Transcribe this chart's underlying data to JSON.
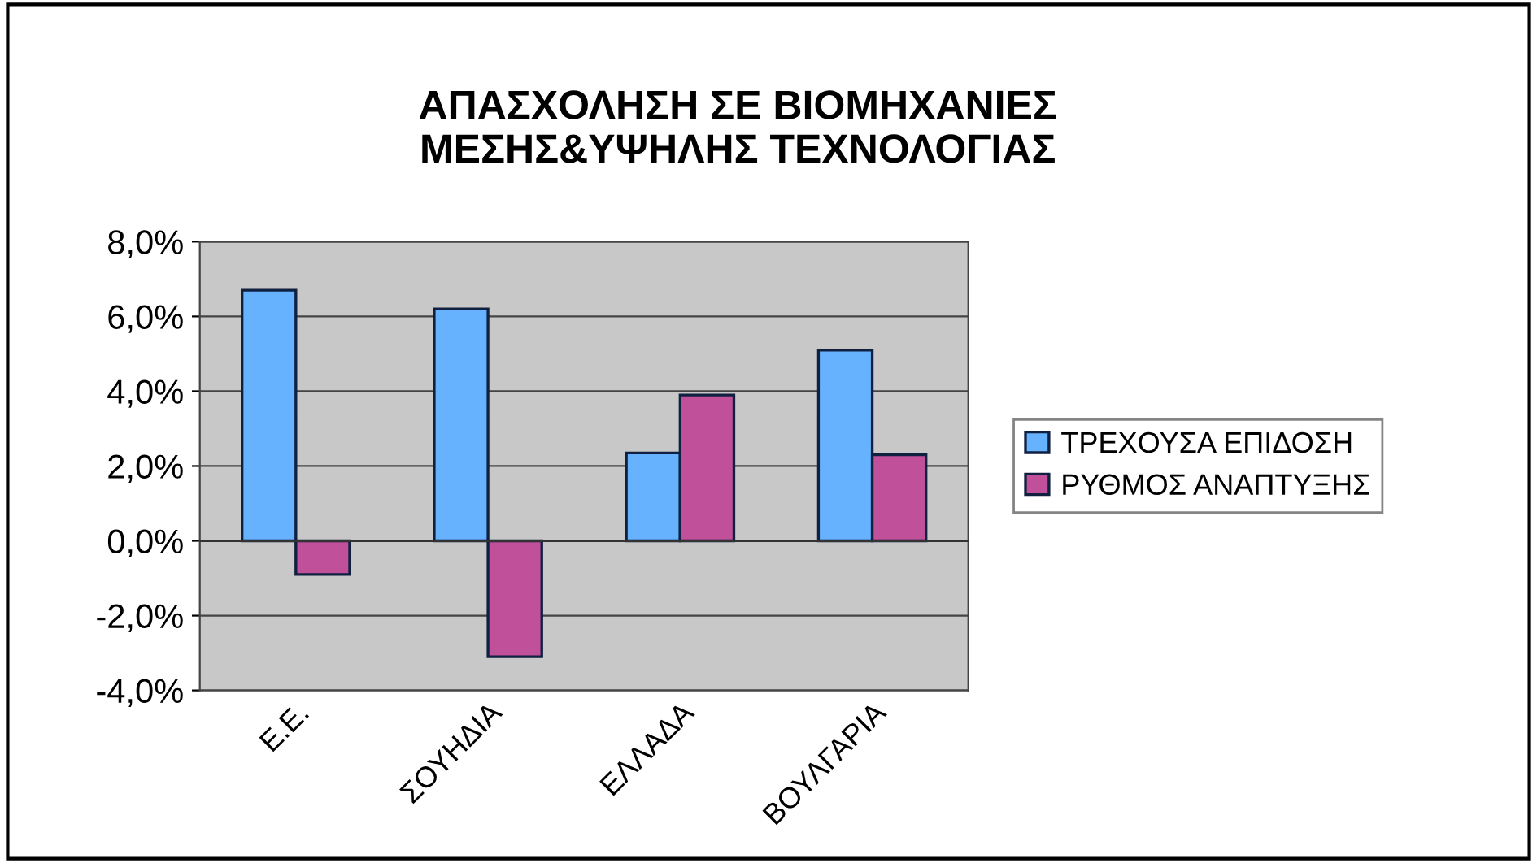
{
  "chart_data": {
    "type": "bar",
    "title": "ΑΠΑΣΧΟΛΗΣΗ ΣΕ ΒΙΟΜΗΧΑΝΙΕΣ\nΜΕΣΗΣ&ΥΨΗΛΗΣ ΤΕΧΝΟΛΟΓΙΑΣ",
    "categories": [
      "Ε.Ε.",
      "ΣΟΥΗΔΙΑ",
      "ΕΛΛΑΔΑ",
      "ΒΟΥΛΓΑΡΙΑ"
    ],
    "series": [
      {
        "name": "ΤΡΕΧΟΥΣΑ ΕΠΙΔΟΣΗ",
        "color": "#66b2ff",
        "values": [
          6.7,
          6.2,
          2.35,
          5.1
        ]
      },
      {
        "name": "ΡΥΘΜΟΣ ΑΝΑΠΤΥΞΗΣ",
        "color": "#c0509a",
        "values": [
          -0.9,
          -3.1,
          3.9,
          2.3
        ]
      }
    ],
    "ylim": [
      -4,
      8
    ],
    "yticks": [
      {
        "value": -4,
        "label": "-4,0%"
      },
      {
        "value": -2,
        "label": "-2,0%"
      },
      {
        "value": 0,
        "label": "0,0%"
      },
      {
        "value": 2,
        "label": "2,0%"
      },
      {
        "value": 4,
        "label": "4,0%"
      },
      {
        "value": 6,
        "label": "6,0%"
      },
      {
        "value": 8,
        "label": "8,0%"
      }
    ],
    "grid": "y",
    "legend": "right"
  }
}
